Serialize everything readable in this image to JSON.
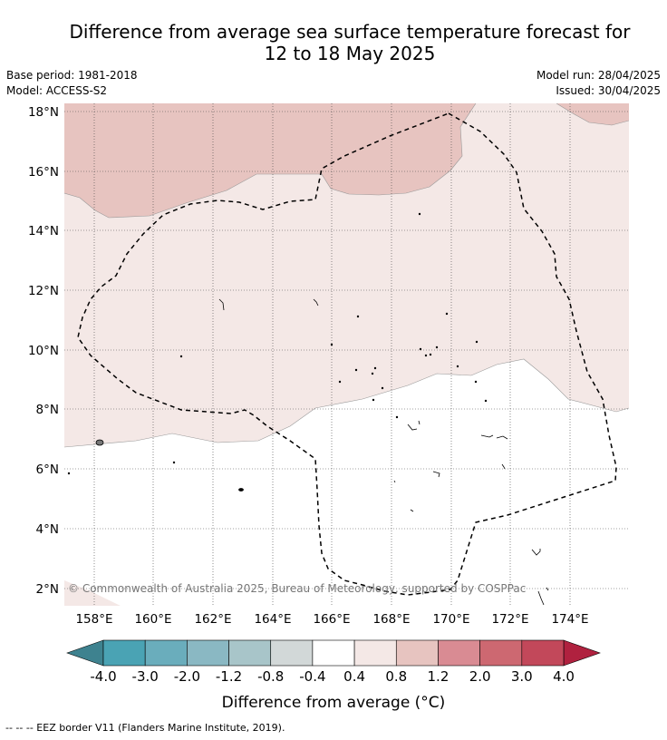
{
  "title": {
    "line1": "Difference from average sea surface temperature forecast for",
    "line2": "12 to 18 May 2025"
  },
  "meta": {
    "base_period": "Base period: 1981-2018",
    "model": "Model: ACCESS-S2",
    "model_run": "Model run: 28/04/2025",
    "issued": "Issued: 30/04/2025"
  },
  "map": {
    "lon_labels": [
      "158°E",
      "160°E",
      "162°E",
      "164°E",
      "166°E",
      "168°E",
      "170°E",
      "172°E",
      "174°E"
    ],
    "lat_labels": [
      "18°N",
      "16°N",
      "14°N",
      "12°N",
      "10°N",
      "8°N",
      "6°N",
      "4°N",
      "2°N"
    ],
    "copyright": "© Commonwealth of Australia 2025, Bureau of Meteorology, supported by COSPPac",
    "colors": {
      "band_0p4_0p8": "#f4e8e6",
      "band_0p8_1p2": "#e7c4c0",
      "neutral": "#ffffff"
    }
  },
  "colorbar": {
    "ticks": [
      "-4.0",
      "-3.0",
      "-2.0",
      "-1.2",
      "-0.8",
      "-0.4",
      "0.4",
      "0.8",
      "1.2",
      "2.0",
      "3.0",
      "4.0"
    ],
    "colors": [
      "#4aa3b4",
      "#6aadbc",
      "#8ab8c3",
      "#a8c5c9",
      "#d2d8d8",
      "#ffffff",
      "#f4e8e6",
      "#e7c4c0",
      "#d98b93",
      "#cd6871",
      "#c2485a"
    ],
    "extend_low": "#3e828f",
    "extend_high": "#b0213f",
    "label": "Difference from average (°C)"
  },
  "legend": {
    "eez_text": "--  --  -- EEZ border V11 (Flanders Marine Institute, 2019)."
  }
}
